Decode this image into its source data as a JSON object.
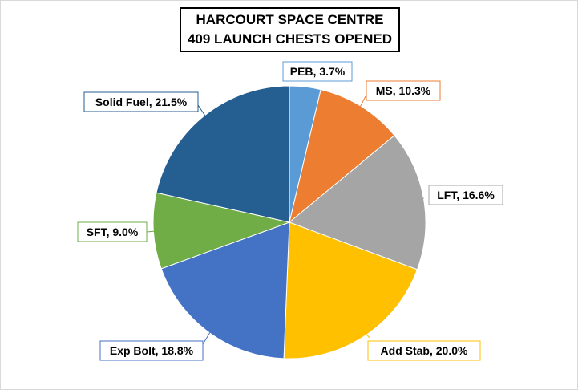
{
  "title_lines": [
    "HARCOURT SPACE CENTRE",
    "409 LAUNCH CHESTS OPENED"
  ],
  "chart_data": {
    "type": "pie",
    "title": "HARCOURT SPACE CENTRE 409 LAUNCH CHESTS OPENED",
    "start_angle": "12 o'clock, clockwise",
    "legend": "none (data labels with callout boxes)",
    "slices": [
      {
        "label": "PEB",
        "value": 3.7,
        "display": "PEB, 3.7%",
        "color": "#5b9bd5"
      },
      {
        "label": "MS",
        "value": 10.3,
        "display": "MS, 10.3%",
        "color": "#ed7d31"
      },
      {
        "label": "LFT",
        "value": 16.6,
        "display": "LFT, 16.6%",
        "color": "#a5a5a5"
      },
      {
        "label": "Add Stab",
        "value": 20.0,
        "display": "Add Stab, 20.0%",
        "color": "#ffc000"
      },
      {
        "label": "Exp Bolt",
        "value": 18.8,
        "display": "Exp Bolt, 18.8%",
        "color": "#4472c4"
      },
      {
        "label": "SFT",
        "value": 9.0,
        "display": "SFT, 9.0%",
        "color": "#70ad47"
      },
      {
        "label": "Solid Fuel",
        "value": 21.5,
        "display": "Solid Fuel, 21.5%",
        "color": "#255e91"
      }
    ]
  }
}
